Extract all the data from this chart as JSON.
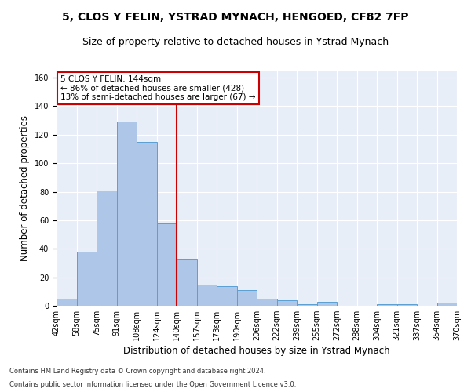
{
  "title": "5, CLOS Y FELIN, YSTRAD MYNACH, HENGOED, CF82 7FP",
  "subtitle": "Size of property relative to detached houses in Ystrad Mynach",
  "xlabel": "Distribution of detached houses by size in Ystrad Mynach",
  "ylabel": "Number of detached properties",
  "footnote1": "Contains HM Land Registry data © Crown copyright and database right 2024.",
  "footnote2": "Contains public sector information licensed under the Open Government Licence v3.0.",
  "bin_labels": [
    "42sqm",
    "58sqm",
    "75sqm",
    "91sqm",
    "108sqm",
    "124sqm",
    "140sqm",
    "157sqm",
    "173sqm",
    "190sqm",
    "206sqm",
    "222sqm",
    "239sqm",
    "255sqm",
    "272sqm",
    "288sqm",
    "304sqm",
    "321sqm",
    "337sqm",
    "354sqm",
    "370sqm"
  ],
  "bar_values": [
    5,
    38,
    81,
    129,
    115,
    58,
    33,
    15,
    14,
    11,
    5,
    4,
    1,
    3,
    0,
    0,
    1,
    1,
    0,
    2
  ],
  "bar_color": "#aec6e8",
  "bar_edge_color": "#5a9fd4",
  "vline_x": 6,
  "vline_color": "#cc0000",
  "annotation_line1": "5 CLOS Y FELIN: 144sqm",
  "annotation_line2": "← 86% of detached houses are smaller (428)",
  "annotation_line3": "13% of semi-detached houses are larger (67) →",
  "annotation_box_color": "#ffffff",
  "annotation_box_edge": "#cc0000",
  "ylim": [
    0,
    165
  ],
  "yticks": [
    0,
    20,
    40,
    60,
    80,
    100,
    120,
    140,
    160
  ],
  "plot_bg_color": "#e8eef8",
  "title_fontsize": 10,
  "subtitle_fontsize": 9,
  "axis_fontsize": 8.5,
  "tick_fontsize": 7,
  "annot_fontsize": 7.5
}
